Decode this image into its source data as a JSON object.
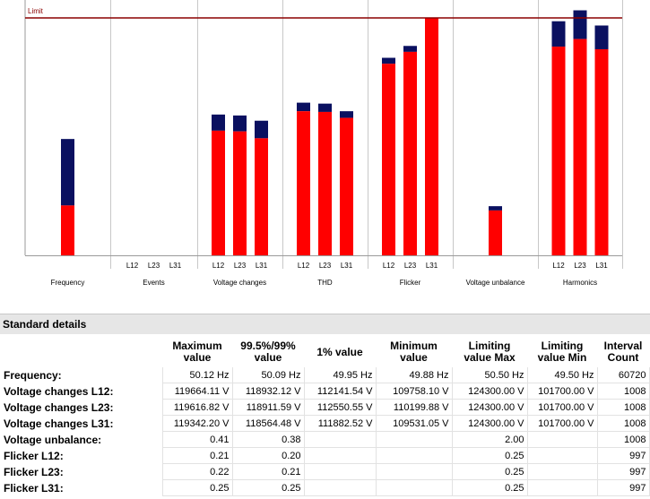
{
  "chart_data": {
    "type": "bar",
    "limit_label": "Limit",
    "limit_value": 100,
    "ylim": [
      0,
      100
    ],
    "colors": {
      "value": "#ff0000",
      "excess": "#0a1060",
      "limit": "#8b0000",
      "grid": "#c8c8c8"
    },
    "groups": [
      {
        "name": "Frequency",
        "bars": [
          {
            "label": "",
            "value": 21,
            "max": 49
          }
        ]
      },
      {
        "name": "Events",
        "bars": [
          {
            "label": "L12",
            "value": 0,
            "max": 0
          },
          {
            "label": "L23",
            "value": 0,
            "max": 0
          },
          {
            "label": "L31",
            "value": 0,
            "max": 0
          }
        ]
      },
      {
        "name": "Voltage changes",
        "bars": [
          {
            "label": "L12",
            "value": 52.5,
            "max": 59.3
          },
          {
            "label": "L23",
            "value": 52.2,
            "max": 58.9
          },
          {
            "label": "L31",
            "value": 49.3,
            "max": 56.7
          }
        ]
      },
      {
        "name": "THD",
        "bars": [
          {
            "label": "L12",
            "value": 60.7,
            "max": 64.3
          },
          {
            "label": "L23",
            "value": 60.4,
            "max": 63.9
          },
          {
            "label": "L31",
            "value": 57.9,
            "max": 60.7
          }
        ]
      },
      {
        "name": "Flicker",
        "bars": [
          {
            "label": "L12",
            "value": 80.7,
            "max": 83.2
          },
          {
            "label": "L23",
            "value": 85.7,
            "max": 88.2
          },
          {
            "label": "L31",
            "value": 100,
            "max": 100
          }
        ]
      },
      {
        "name": "Voltage unbalance",
        "bars": [
          {
            "label": "",
            "value": 18.9,
            "max": 20.7
          }
        ]
      },
      {
        "name": "Harmonics",
        "bars": [
          {
            "label": "L12",
            "value": 87.9,
            "max": 98.6
          },
          {
            "label": "L23",
            "value": 91.1,
            "max": 103.2
          },
          {
            "label": "L31",
            "value": 86.8,
            "max": 96.8
          }
        ]
      }
    ]
  },
  "details": {
    "title": "Standard details",
    "headers": [
      "Maximum value",
      "99.5%/99% value",
      "1% value",
      "Minimum value",
      "Limiting value Max",
      "Limiting value Min",
      "Interval Count"
    ],
    "rows": [
      {
        "label": "Frequency:",
        "values": [
          "50.12 Hz",
          "50.09 Hz",
          "49.95 Hz",
          "49.88 Hz",
          "50.50 Hz",
          "49.50 Hz",
          "60720"
        ]
      },
      {
        "label": "Voltage changes L12:",
        "values": [
          "119664.11 V",
          "118932.12 V",
          "112141.54 V",
          "109758.10 V",
          "124300.00 V",
          "101700.00 V",
          "1008"
        ]
      },
      {
        "label": "Voltage changes L23:",
        "values": [
          "119616.82 V",
          "118911.59 V",
          "112550.55 V",
          "110199.88 V",
          "124300.00 V",
          "101700.00 V",
          "1008"
        ]
      },
      {
        "label": "Voltage changes L31:",
        "values": [
          "119342.20 V",
          "118564.48 V",
          "111882.52 V",
          "109531.05 V",
          "124300.00 V",
          "101700.00 V",
          "1008"
        ]
      },
      {
        "label": "Voltage unbalance:",
        "values": [
          "0.41",
          "0.38",
          "",
          "",
          "2.00",
          "",
          "1008"
        ]
      },
      {
        "label": "Flicker L12:",
        "values": [
          "0.21",
          "0.20",
          "",
          "",
          "0.25",
          "",
          "997"
        ]
      },
      {
        "label": "Flicker L23:",
        "values": [
          "0.22",
          "0.21",
          "",
          "",
          "0.25",
          "",
          "997"
        ]
      },
      {
        "label": "Flicker L31:",
        "values": [
          "0.25",
          "0.25",
          "",
          "",
          "0.25",
          "",
          "997"
        ]
      }
    ]
  }
}
